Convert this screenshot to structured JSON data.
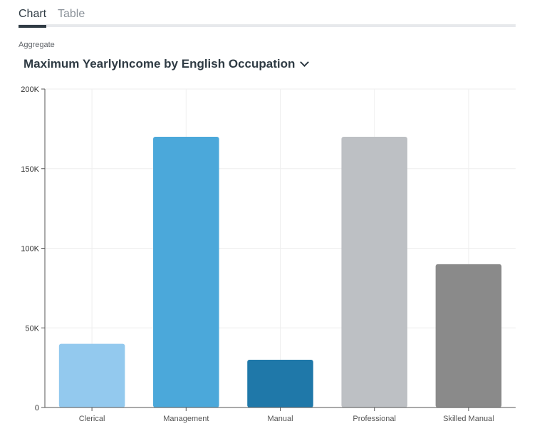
{
  "tabs": [
    {
      "label": "Chart",
      "active": true
    },
    {
      "label": "Table",
      "active": false
    }
  ],
  "aggregate_label": "Aggregate",
  "title": "Maximum YearlyIncome by English Occupation",
  "title_icon": "chevron-down-icon",
  "colors": {
    "tab_active": "#2f3b44",
    "tab_inactive": "#8a9199",
    "grid": "#eeeeee",
    "axis": "#555555"
  },
  "chart_data": {
    "type": "bar",
    "categories": [
      "Clerical",
      "Management",
      "Manual",
      "Professional",
      "Skilled Manual"
    ],
    "values": [
      40000,
      170000,
      30000,
      170000,
      90000
    ],
    "colors": [
      "#93c9ee",
      "#4ba8da",
      "#1f78a9",
      "#bdc0c4",
      "#8a8a8a"
    ],
    "ylim": [
      0,
      200000
    ],
    "yticks": [
      0,
      50000,
      100000,
      150000,
      200000
    ],
    "ytick_labels": [
      "0",
      "50K",
      "100K",
      "150K",
      "200K"
    ],
    "xlabel": "",
    "ylabel": "",
    "grid": true,
    "legend": false
  }
}
